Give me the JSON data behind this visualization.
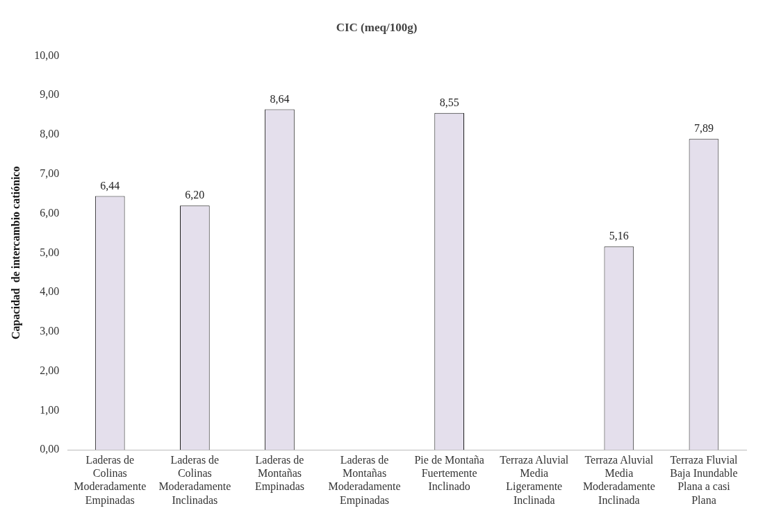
{
  "chart_data": {
    "type": "bar",
    "title": "CIC (meq/100g)",
    "ylabel": "Capacidad  de intercambio catiónico",
    "categories": [
      "Laderas de Colinas Moderadamente Empinadas",
      "Laderas de Colinas Moderadamente Inclinadas",
      "Laderas de Montañas Empinadas",
      "Laderas de Montañas Moderadamente Empinadas",
      "Pie de Montaña Fuertemente Inclinado",
      "Terraza Aluvial Media Ligeramente Inclinada",
      "Terraza Aluvial Media Moderadamente Inclinada",
      "Terraza Fluvial Baja Inundable Plana a casi Plana"
    ],
    "values": [
      6.44,
      6.2,
      8.64,
      null,
      8.55,
      null,
      5.16,
      7.89
    ],
    "value_labels": [
      "6,44",
      "6,20",
      "8,64",
      null,
      "8,55",
      null,
      "5,16",
      "7,89"
    ],
    "color": "#e4dfec",
    "ylim": [
      0,
      10
    ],
    "yticks": [
      {
        "value": 0,
        "label": "0,00"
      },
      {
        "value": 1,
        "label": "1,00"
      },
      {
        "value": 2,
        "label": "2,00"
      },
      {
        "value": 3,
        "label": "3,00"
      },
      {
        "value": 4,
        "label": "4,00"
      },
      {
        "value": 5,
        "label": "5,00"
      },
      {
        "value": 6,
        "label": "6,00"
      },
      {
        "value": 7,
        "label": "7,00"
      },
      {
        "value": 8,
        "label": "8,00"
      },
      {
        "value": 9,
        "label": "9,00"
      },
      {
        "value": 10,
        "label": "10,00"
      }
    ],
    "grid": false,
    "legend": false
  }
}
